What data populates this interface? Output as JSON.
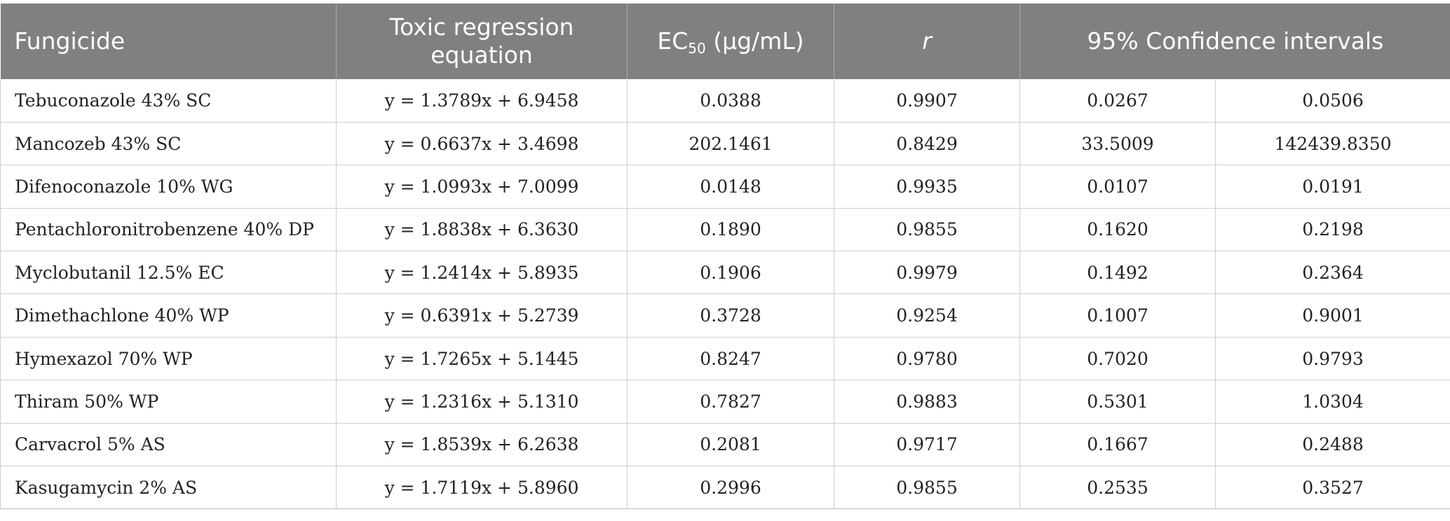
{
  "table": {
    "headers": {
      "fungicide": "Fungicide",
      "equation": "Toxic regression equation",
      "ec50_main": "EC",
      "ec50_sub": "50",
      "ec50_unit": " (μg/mL)",
      "r": "r",
      "ci": "95% Confidence intervals"
    },
    "rows": [
      {
        "fungicide": "Tebuconazole 43% SC",
        "equation": "y = 1.3789x + 6.9458",
        "ec50": "0.0388",
        "r": "0.9907",
        "ci_low": "0.0267",
        "ci_high": "0.0506"
      },
      {
        "fungicide": "Mancozeb 43% SC",
        "equation": "y = 0.6637x + 3.4698",
        "ec50": "202.1461",
        "r": "0.8429",
        "ci_low": "33.5009",
        "ci_high": "142439.8350"
      },
      {
        "fungicide": "Difenoconazole 10% WG",
        "equation": "y = 1.0993x + 7.0099",
        "ec50": "0.0148",
        "r": "0.9935",
        "ci_low": "0.0107",
        "ci_high": "0.0191"
      },
      {
        "fungicide": "Pentachloronitrobenzene 40% DP",
        "equation": "y = 1.8838x + 6.3630",
        "ec50": "0.1890",
        "r": "0.9855",
        "ci_low": "0.1620",
        "ci_high": "0.2198"
      },
      {
        "fungicide": "Myclobutanil 12.5% EC",
        "equation": "y = 1.2414x + 5.8935",
        "ec50": "0.1906",
        "r": "0.9979",
        "ci_low": "0.1492",
        "ci_high": "0.2364"
      },
      {
        "fungicide": "Dimethachlone 40% WP",
        "equation": "y = 0.6391x + 5.2739",
        "ec50": "0.3728",
        "r": "0.9254",
        "ci_low": "0.1007",
        "ci_high": "0.9001"
      },
      {
        "fungicide": "Hymexazol 70% WP",
        "equation": "y = 1.7265x + 5.1445",
        "ec50": "0.8247",
        "r": "0.9780",
        "ci_low": "0.7020",
        "ci_high": "0.9793"
      },
      {
        "fungicide": "Thiram 50% WP",
        "equation": "y = 1.2316x + 5.1310",
        "ec50": "0.7827",
        "r": "0.9883",
        "ci_low": "0.5301",
        "ci_high": "1.0304"
      },
      {
        "fungicide": "Carvacrol 5% AS",
        "equation": "y = 1.8539x + 6.2638",
        "ec50": "0.2081",
        "r": "0.9717",
        "ci_low": "0.1667",
        "ci_high": "0.2488"
      },
      {
        "fungicide": "Kasugamycin 2% AS",
        "equation": "y = 1.7119x + 5.8960",
        "ec50": "0.2996",
        "r": "0.9855",
        "ci_low": "0.2535",
        "ci_high": "0.3527"
      }
    ]
  }
}
